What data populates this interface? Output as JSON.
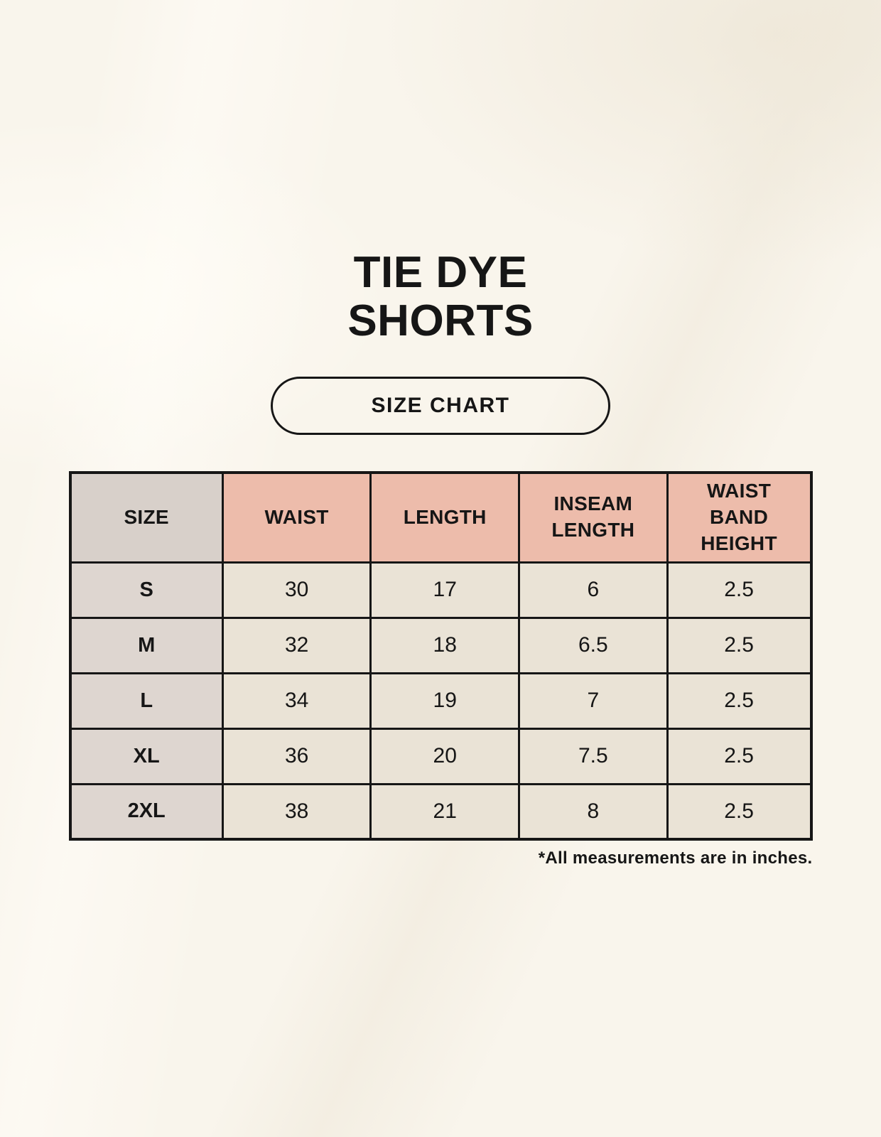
{
  "header": {
    "title_line1": "TIE DYE",
    "title_line2": "SHORTS",
    "badge_label": "SIZE CHART"
  },
  "table": {
    "columns": [
      "SIZE",
      "WAIST",
      "LENGTH",
      "INSEAM\nLENGTH",
      "WAIST\nBAND\nHEIGHT"
    ],
    "rows": [
      {
        "label": "S",
        "values": [
          "30",
          "17",
          "6",
          "2.5"
        ]
      },
      {
        "label": "M",
        "values": [
          "32",
          "18",
          "6.5",
          "2.5"
        ]
      },
      {
        "label": "L",
        "values": [
          "34",
          "19",
          "7",
          "2.5"
        ]
      },
      {
        "label": "XL",
        "values": [
          "36",
          "20",
          "7.5",
          "2.5"
        ]
      },
      {
        "label": "2XL",
        "values": [
          "38",
          "21",
          "8",
          "2.5"
        ]
      }
    ]
  },
  "footer": {
    "note": "*All measurements are in inches."
  },
  "colors": {
    "background": "#f9f5ec",
    "header_pink": "#edbcab",
    "header_gray": "#d8d0ca",
    "row_label_gray": "#ded6d0",
    "cell_cream": "#eae3d6",
    "border": "#161616",
    "text": "#161616"
  },
  "chart_data": {
    "type": "table",
    "title": "TIE DYE SHORTS — SIZE CHART",
    "columns": [
      "SIZE",
      "WAIST",
      "LENGTH",
      "INSEAM LENGTH",
      "WAIST BAND HEIGHT"
    ],
    "rows": [
      [
        "S",
        30,
        17,
        6,
        2.5
      ],
      [
        "M",
        32,
        18,
        6.5,
        2.5
      ],
      [
        "L",
        34,
        19,
        7,
        2.5
      ],
      [
        "XL",
        36,
        20,
        7.5,
        2.5
      ],
      [
        "2XL",
        38,
        21,
        8,
        2.5
      ]
    ],
    "units": "inches"
  }
}
